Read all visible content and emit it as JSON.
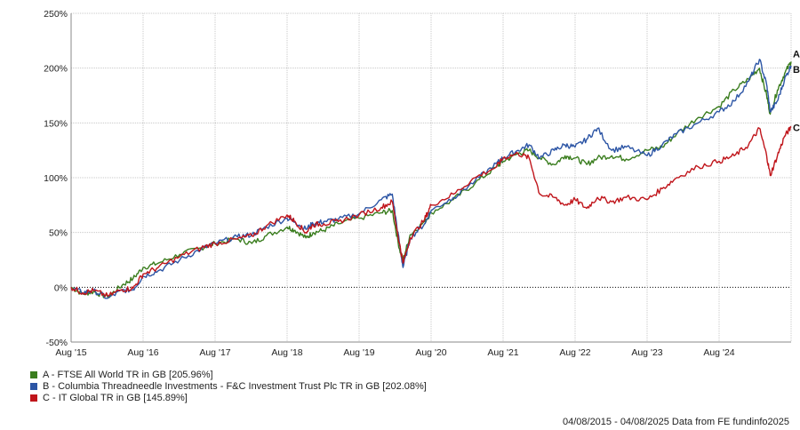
{
  "footer": "04/08/2015 - 04/08/2025 Data from FE fundinfo2025",
  "chart_data": {
    "type": "line",
    "ylim": [
      -50,
      250
    ],
    "yticks": [
      "250%",
      "200%",
      "150%",
      "100%",
      "50%",
      "0%",
      "-50%"
    ],
    "yvalues": [
      250,
      200,
      150,
      100,
      50,
      0,
      -50
    ],
    "xticks": [
      "Aug '15",
      "Aug '16",
      "Aug '17",
      "Aug '18",
      "Aug '19",
      "Aug '20",
      "Aug '21",
      "Aug '22",
      "Aug '23",
      "Aug '24"
    ],
    "xtick_years": [
      2015.59,
      2016.59,
      2017.59,
      2018.59,
      2019.59,
      2020.59,
      2021.59,
      2022.59,
      2023.59,
      2024.59
    ],
    "xlim": [
      2015.59,
      2025.59
    ],
    "grid": true,
    "legend_position": "bottom-left",
    "series": [
      {
        "name": "A - FTSE All World TR in GB [205.96%]",
        "end_label": "A",
        "color": "#3a7d1e",
        "points": [
          [
            2015.59,
            0
          ],
          [
            2015.75,
            -6
          ],
          [
            2015.9,
            -4
          ],
          [
            2016.1,
            -9
          ],
          [
            2016.3,
            2
          ],
          [
            2016.45,
            8
          ],
          [
            2016.59,
            18
          ],
          [
            2016.8,
            22
          ],
          [
            2017.1,
            30
          ],
          [
            2017.4,
            36
          ],
          [
            2017.59,
            40
          ],
          [
            2017.9,
            44
          ],
          [
            2018.1,
            40
          ],
          [
            2018.3,
            47
          ],
          [
            2018.59,
            55
          ],
          [
            2018.7,
            52
          ],
          [
            2018.85,
            45
          ],
          [
            2018.95,
            50
          ],
          [
            2019.1,
            52
          ],
          [
            2019.3,
            58
          ],
          [
            2019.59,
            63
          ],
          [
            2019.9,
            68
          ],
          [
            2020.05,
            70
          ],
          [
            2020.15,
            35
          ],
          [
            2020.2,
            25
          ],
          [
            2020.3,
            48
          ],
          [
            2020.5,
            60
          ],
          [
            2020.59,
            68
          ],
          [
            2020.9,
            80
          ],
          [
            2021.2,
            95
          ],
          [
            2021.5,
            110
          ],
          [
            2021.59,
            115
          ],
          [
            2021.8,
            122
          ],
          [
            2021.95,
            125
          ],
          [
            2022.1,
            118
          ],
          [
            2022.3,
            112
          ],
          [
            2022.45,
            120
          ],
          [
            2022.59,
            118
          ],
          [
            2022.75,
            112
          ],
          [
            2022.9,
            118
          ],
          [
            2023.1,
            120
          ],
          [
            2023.3,
            117
          ],
          [
            2023.59,
            125
          ],
          [
            2023.8,
            128
          ],
          [
            2024.0,
            140
          ],
          [
            2024.3,
            155
          ],
          [
            2024.59,
            165
          ],
          [
            2024.8,
            180
          ],
          [
            2025.0,
            190
          ],
          [
            2025.15,
            200
          ],
          [
            2025.25,
            175
          ],
          [
            2025.3,
            158
          ],
          [
            2025.4,
            180
          ],
          [
            2025.5,
            195
          ],
          [
            2025.59,
            205.96
          ]
        ]
      },
      {
        "name": "B - Columbia Threadneedle Investments - F&C Investment Trust Plc TR in GB [202.08%]",
        "end_label": "B",
        "color": "#2c55a5",
        "points": [
          [
            2015.59,
            0
          ],
          [
            2015.75,
            -5
          ],
          [
            2015.9,
            -3
          ],
          [
            2016.1,
            -10
          ],
          [
            2016.3,
            -3
          ],
          [
            2016.45,
            -2
          ],
          [
            2016.59,
            10
          ],
          [
            2016.8,
            15
          ],
          [
            2017.1,
            25
          ],
          [
            2017.4,
            35
          ],
          [
            2017.59,
            40
          ],
          [
            2017.9,
            46
          ],
          [
            2018.1,
            48
          ],
          [
            2018.3,
            55
          ],
          [
            2018.59,
            63
          ],
          [
            2018.7,
            60
          ],
          [
            2018.85,
            53
          ],
          [
            2018.95,
            58
          ],
          [
            2019.1,
            60
          ],
          [
            2019.3,
            62
          ],
          [
            2019.59,
            67
          ],
          [
            2019.9,
            80
          ],
          [
            2020.05,
            85
          ],
          [
            2020.15,
            40
          ],
          [
            2020.2,
            18
          ],
          [
            2020.3,
            45
          ],
          [
            2020.5,
            58
          ],
          [
            2020.59,
            70
          ],
          [
            2020.9,
            82
          ],
          [
            2021.2,
            97
          ],
          [
            2021.5,
            113
          ],
          [
            2021.59,
            118
          ],
          [
            2021.8,
            125
          ],
          [
            2021.95,
            130
          ],
          [
            2022.1,
            118
          ],
          [
            2022.3,
            125
          ],
          [
            2022.45,
            130
          ],
          [
            2022.59,
            128
          ],
          [
            2022.75,
            135
          ],
          [
            2022.9,
            145
          ],
          [
            2023.1,
            125
          ],
          [
            2023.3,
            128
          ],
          [
            2023.59,
            120
          ],
          [
            2023.8,
            130
          ],
          [
            2024.0,
            140
          ],
          [
            2024.3,
            150
          ],
          [
            2024.59,
            160
          ],
          [
            2024.8,
            170
          ],
          [
            2025.0,
            188
          ],
          [
            2025.15,
            208
          ],
          [
            2025.25,
            185
          ],
          [
            2025.3,
            160
          ],
          [
            2025.4,
            170
          ],
          [
            2025.5,
            190
          ],
          [
            2025.59,
            202.08
          ]
        ]
      },
      {
        "name": "C - IT Global TR in GB [145.89%]",
        "end_label": "C",
        "color": "#c0151b",
        "points": [
          [
            2015.59,
            0
          ],
          [
            2015.75,
            -5
          ],
          [
            2015.9,
            -3
          ],
          [
            2016.1,
            -8
          ],
          [
            2016.3,
            -2
          ],
          [
            2016.45,
            -1
          ],
          [
            2016.59,
            12
          ],
          [
            2016.8,
            18
          ],
          [
            2017.1,
            28
          ],
          [
            2017.4,
            36
          ],
          [
            2017.59,
            40
          ],
          [
            2017.9,
            44
          ],
          [
            2018.1,
            47
          ],
          [
            2018.3,
            56
          ],
          [
            2018.59,
            66
          ],
          [
            2018.7,
            60
          ],
          [
            2018.85,
            50
          ],
          [
            2018.95,
            57
          ],
          [
            2019.1,
            58
          ],
          [
            2019.3,
            60
          ],
          [
            2019.59,
            66
          ],
          [
            2019.9,
            73
          ],
          [
            2020.05,
            78
          ],
          [
            2020.15,
            40
          ],
          [
            2020.2,
            22
          ],
          [
            2020.3,
            45
          ],
          [
            2020.5,
            62
          ],
          [
            2020.59,
            75
          ],
          [
            2020.9,
            85
          ],
          [
            2021.2,
            100
          ],
          [
            2021.5,
            110
          ],
          [
            2021.59,
            118
          ],
          [
            2021.8,
            122
          ],
          [
            2021.95,
            118
          ],
          [
            2022.1,
            85
          ],
          [
            2022.3,
            82
          ],
          [
            2022.45,
            75
          ],
          [
            2022.59,
            80
          ],
          [
            2022.75,
            72
          ],
          [
            2022.9,
            82
          ],
          [
            2023.1,
            78
          ],
          [
            2023.3,
            82
          ],
          [
            2023.59,
            80
          ],
          [
            2023.8,
            90
          ],
          [
            2024.0,
            100
          ],
          [
            2024.3,
            110
          ],
          [
            2024.59,
            115
          ],
          [
            2024.8,
            120
          ],
          [
            2025.0,
            130
          ],
          [
            2025.15,
            145
          ],
          [
            2025.25,
            120
          ],
          [
            2025.3,
            102
          ],
          [
            2025.4,
            120
          ],
          [
            2025.5,
            138
          ],
          [
            2025.59,
            145.89
          ]
        ]
      }
    ]
  }
}
